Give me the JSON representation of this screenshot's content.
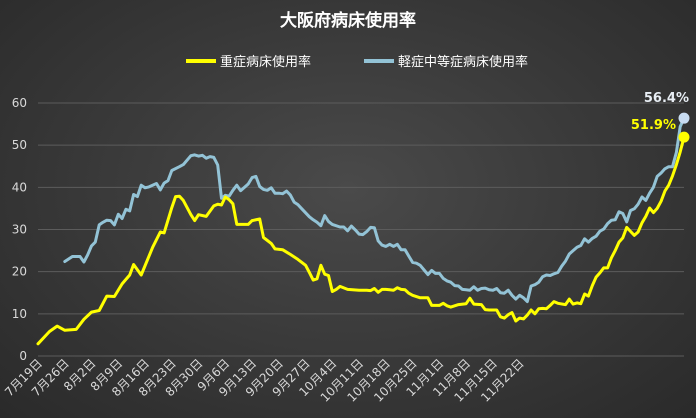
{
  "chart_data": {
    "type": "line",
    "title": "大阪府病床使用率",
    "ylim": [
      0,
      60
    ],
    "yticks": [
      0,
      10,
      20,
      30,
      40,
      50,
      60
    ],
    "xticks": [
      "7月19日",
      "7月26日",
      "8月2日",
      "8月9日",
      "8月16日",
      "8月23日",
      "8月30日",
      "9月6日",
      "9月13日",
      "9月20日",
      "9月27日",
      "10月4日",
      "10月11日",
      "10月18日",
      "10月25日",
      "11月1日",
      "11月8日",
      "11月15日",
      "11月22日"
    ],
    "grid": true,
    "legend_position": "top",
    "series": [
      {
        "name": "重症病床使用率",
        "color": "#ffff00",
        "final_label": "51.9%",
        "points": [
          [
            0,
            2.9
          ],
          [
            3,
            5.8
          ],
          [
            5,
            7.1
          ],
          [
            7,
            6.1
          ],
          [
            10,
            6.3
          ],
          [
            12,
            8.7
          ],
          [
            14,
            10.4
          ],
          [
            16,
            10.8
          ],
          [
            18,
            14.2
          ],
          [
            20,
            14.1
          ],
          [
            22,
            17.1
          ],
          [
            24,
            19.2
          ],
          [
            25,
            21.7
          ],
          [
            27,
            19.2
          ],
          [
            30,
            25.8
          ],
          [
            32,
            29.4
          ],
          [
            33,
            29.2
          ],
          [
            35,
            35.2
          ],
          [
            36,
            37.8
          ],
          [
            37,
            37.9
          ],
          [
            38,
            36.9
          ],
          [
            40,
            33.5
          ],
          [
            41,
            32.1
          ],
          [
            42,
            33.5
          ],
          [
            44,
            33.1
          ],
          [
            46,
            35.6
          ],
          [
            47,
            36.0
          ],
          [
            48,
            35.8
          ],
          [
            49,
            37.7
          ],
          [
            50,
            37.1
          ],
          [
            51,
            36.1
          ],
          [
            52,
            31.2
          ],
          [
            54,
            31.2
          ],
          [
            55,
            31.2
          ],
          [
            56,
            32.1
          ],
          [
            58,
            32.5
          ],
          [
            59,
            28.1
          ],
          [
            61,
            26.7
          ],
          [
            62,
            25.4
          ],
          [
            64,
            25.2
          ],
          [
            66,
            24.1
          ],
          [
            68,
            22.9
          ],
          [
            70,
            21.5
          ],
          [
            71,
            19.8
          ],
          [
            72,
            18.0
          ],
          [
            73,
            18.3
          ],
          [
            74,
            21.5
          ],
          [
            75,
            19.4
          ],
          [
            76,
            19.1
          ],
          [
            77,
            15.3
          ],
          [
            78,
            15.8
          ],
          [
            79,
            16.5
          ],
          [
            81,
            15.8
          ],
          [
            84,
            15.6
          ],
          [
            86,
            15.6
          ],
          [
            87,
            15.5
          ],
          [
            88,
            16.0
          ],
          [
            89,
            15.1
          ],
          [
            90,
            15.8
          ],
          [
            91,
            15.8
          ],
          [
            92,
            15.7
          ],
          [
            93,
            15.6
          ],
          [
            94,
            16.2
          ],
          [
            95,
            15.8
          ],
          [
            96,
            15.7
          ],
          [
            97,
            14.9
          ],
          [
            98,
            14.4
          ],
          [
            100,
            13.8
          ],
          [
            102,
            13.8
          ],
          [
            103,
            12.0
          ],
          [
            105,
            12.0
          ],
          [
            106,
            12.5
          ],
          [
            107,
            11.9
          ],
          [
            108,
            11.6
          ],
          [
            110,
            12.2
          ],
          [
            112,
            12.4
          ],
          [
            113,
            13.7
          ],
          [
            114,
            12.3
          ],
          [
            116,
            12.2
          ],
          [
            117,
            11.0
          ],
          [
            118,
            10.9
          ],
          [
            120,
            10.9
          ],
          [
            121,
            9.3
          ],
          [
            122,
            9.0
          ],
          [
            123,
            9.8
          ],
          [
            124,
            10.3
          ],
          [
            125,
            8.3
          ],
          [
            126,
            9.0
          ],
          [
            127,
            8.8
          ],
          [
            128,
            9.7
          ],
          [
            129,
            10.9
          ],
          [
            130,
            10.0
          ],
          [
            131,
            11.2
          ],
          [
            132,
            11.3
          ],
          [
            133,
            11.2
          ],
          [
            134,
            12.0
          ],
          [
            135,
            12.9
          ],
          [
            136,
            12.5
          ],
          [
            138,
            12.2
          ],
          [
            139,
            13.5
          ],
          [
            140,
            12.3
          ],
          [
            141,
            12.6
          ],
          [
            142,
            12.4
          ],
          [
            143,
            14.7
          ],
          [
            144,
            14.2
          ],
          [
            145,
            16.7
          ],
          [
            146,
            18.7
          ],
          [
            147,
            19.7
          ],
          [
            148,
            20.9
          ],
          [
            149,
            20.9
          ],
          [
            150,
            23.3
          ],
          [
            151,
            25.0
          ],
          [
            152,
            27.0
          ],
          [
            153,
            28.0
          ],
          [
            154,
            30.5
          ],
          [
            156,
            28.6
          ],
          [
            157,
            29.4
          ],
          [
            158,
            31.6
          ],
          [
            159,
            33.1
          ],
          [
            160,
            35.1
          ],
          [
            161,
            34.0
          ],
          [
            162,
            35.0
          ],
          [
            163,
            36.7
          ],
          [
            164,
            39.1
          ],
          [
            165,
            40.5
          ],
          [
            166,
            42.7
          ],
          [
            167,
            45.4
          ],
          [
            168,
            48.4
          ],
          [
            169,
            51.9
          ]
        ]
      },
      {
        "name": "軽症中等症病床使用率",
        "color": "#93c3d6",
        "final_label": "56.4%",
        "points": [
          [
            7,
            22.4
          ],
          [
            9,
            23.6
          ],
          [
            11,
            23.6
          ],
          [
            12,
            22.3
          ],
          [
            13,
            24.0
          ],
          [
            14,
            26.1
          ],
          [
            15,
            27.0
          ],
          [
            16,
            31.1
          ],
          [
            17,
            31.7
          ],
          [
            18,
            32.2
          ],
          [
            19,
            32.1
          ],
          [
            20,
            31.1
          ],
          [
            21,
            33.6
          ],
          [
            22,
            32.6
          ],
          [
            23,
            34.8
          ],
          [
            24,
            34.4
          ],
          [
            25,
            38.3
          ],
          [
            26,
            37.8
          ],
          [
            27,
            40.5
          ],
          [
            28,
            39.9
          ],
          [
            29,
            40.1
          ],
          [
            31,
            40.9
          ],
          [
            32,
            39.4
          ],
          [
            33,
            41.0
          ],
          [
            34,
            41.6
          ],
          [
            35,
            44.0
          ],
          [
            37,
            44.9
          ],
          [
            38,
            45.4
          ],
          [
            40,
            47.5
          ],
          [
            41,
            47.7
          ],
          [
            42,
            47.4
          ],
          [
            43,
            47.6
          ],
          [
            44,
            46.9
          ],
          [
            45,
            47.3
          ],
          [
            46,
            47.1
          ],
          [
            47,
            45.3
          ],
          [
            48,
            37.4
          ],
          [
            49,
            38.1
          ],
          [
            50,
            37.9
          ],
          [
            51,
            39.3
          ],
          [
            52,
            40.5
          ],
          [
            53,
            39.2
          ],
          [
            55,
            40.8
          ],
          [
            56,
            42.3
          ],
          [
            57,
            42.6
          ],
          [
            58,
            40.2
          ],
          [
            59,
            39.5
          ],
          [
            60,
            39.3
          ],
          [
            61,
            39.9
          ],
          [
            62,
            38.6
          ],
          [
            63,
            38.6
          ],
          [
            64,
            38.5
          ],
          [
            65,
            39.1
          ],
          [
            66,
            38.2
          ],
          [
            67,
            36.5
          ],
          [
            68,
            35.9
          ],
          [
            69,
            34.9
          ],
          [
            71,
            33.0
          ],
          [
            72,
            32.3
          ],
          [
            73,
            31.7
          ],
          [
            74,
            30.9
          ],
          [
            75,
            33.3
          ],
          [
            76,
            31.9
          ],
          [
            77,
            31.2
          ],
          [
            79,
            30.6
          ],
          [
            80,
            30.6
          ],
          [
            81,
            29.7
          ],
          [
            82,
            30.8
          ],
          [
            83,
            29.9
          ],
          [
            84,
            28.9
          ],
          [
            85,
            28.8
          ],
          [
            86,
            29.5
          ],
          [
            87,
            30.5
          ],
          [
            88,
            30.4
          ],
          [
            89,
            27.3
          ],
          [
            90,
            26.3
          ],
          [
            91,
            26.0
          ],
          [
            92,
            26.5
          ],
          [
            93,
            26.0
          ],
          [
            94,
            26.5
          ],
          [
            95,
            25.2
          ],
          [
            96,
            25.2
          ],
          [
            97,
            23.7
          ],
          [
            98,
            22.2
          ],
          [
            99,
            22.0
          ],
          [
            100,
            21.5
          ],
          [
            101,
            20.4
          ],
          [
            102,
            19.3
          ],
          [
            103,
            20.3
          ],
          [
            104,
            19.6
          ],
          [
            105,
            19.6
          ],
          [
            106,
            18.4
          ],
          [
            107,
            17.8
          ],
          [
            108,
            17.5
          ],
          [
            109,
            16.7
          ],
          [
            110,
            16.6
          ],
          [
            111,
            15.8
          ],
          [
            112,
            15.7
          ],
          [
            113,
            15.6
          ],
          [
            114,
            16.4
          ],
          [
            115,
            15.6
          ],
          [
            116,
            16.0
          ],
          [
            117,
            16.1
          ],
          [
            118,
            15.7
          ],
          [
            119,
            15.6
          ],
          [
            120,
            16.0
          ],
          [
            121,
            15.0
          ],
          [
            122,
            14.9
          ],
          [
            123,
            15.6
          ],
          [
            124,
            14.4
          ],
          [
            125,
            13.5
          ],
          [
            126,
            14.4
          ],
          [
            127,
            13.8
          ],
          [
            128,
            12.9
          ],
          [
            129,
            16.6
          ],
          [
            130,
            16.9
          ],
          [
            131,
            17.5
          ],
          [
            132,
            18.8
          ],
          [
            133,
            19.2
          ],
          [
            134,
            19.1
          ],
          [
            135,
            19.5
          ],
          [
            136,
            19.8
          ],
          [
            137,
            21.3
          ],
          [
            138,
            22.5
          ],
          [
            139,
            24.2
          ],
          [
            140,
            25.0
          ],
          [
            141,
            25.8
          ],
          [
            142,
            26.2
          ],
          [
            143,
            27.8
          ],
          [
            144,
            27.0
          ],
          [
            145,
            27.9
          ],
          [
            146,
            28.4
          ],
          [
            147,
            29.6
          ],
          [
            148,
            30.1
          ],
          [
            149,
            31.4
          ],
          [
            150,
            32.2
          ],
          [
            151,
            32.3
          ],
          [
            152,
            34.2
          ],
          [
            153,
            33.8
          ],
          [
            154,
            31.8
          ],
          [
            155,
            34.5
          ],
          [
            156,
            34.9
          ],
          [
            157,
            36.0
          ],
          [
            158,
            37.7
          ],
          [
            159,
            36.9
          ],
          [
            160,
            38.6
          ],
          [
            161,
            40.0
          ],
          [
            162,
            42.6
          ],
          [
            163,
            43.4
          ],
          [
            164,
            44.4
          ],
          [
            165,
            44.9
          ],
          [
            166,
            44.9
          ],
          [
            167,
            48.3
          ],
          [
            168,
            54.4
          ],
          [
            169,
            56.4
          ]
        ]
      }
    ]
  }
}
